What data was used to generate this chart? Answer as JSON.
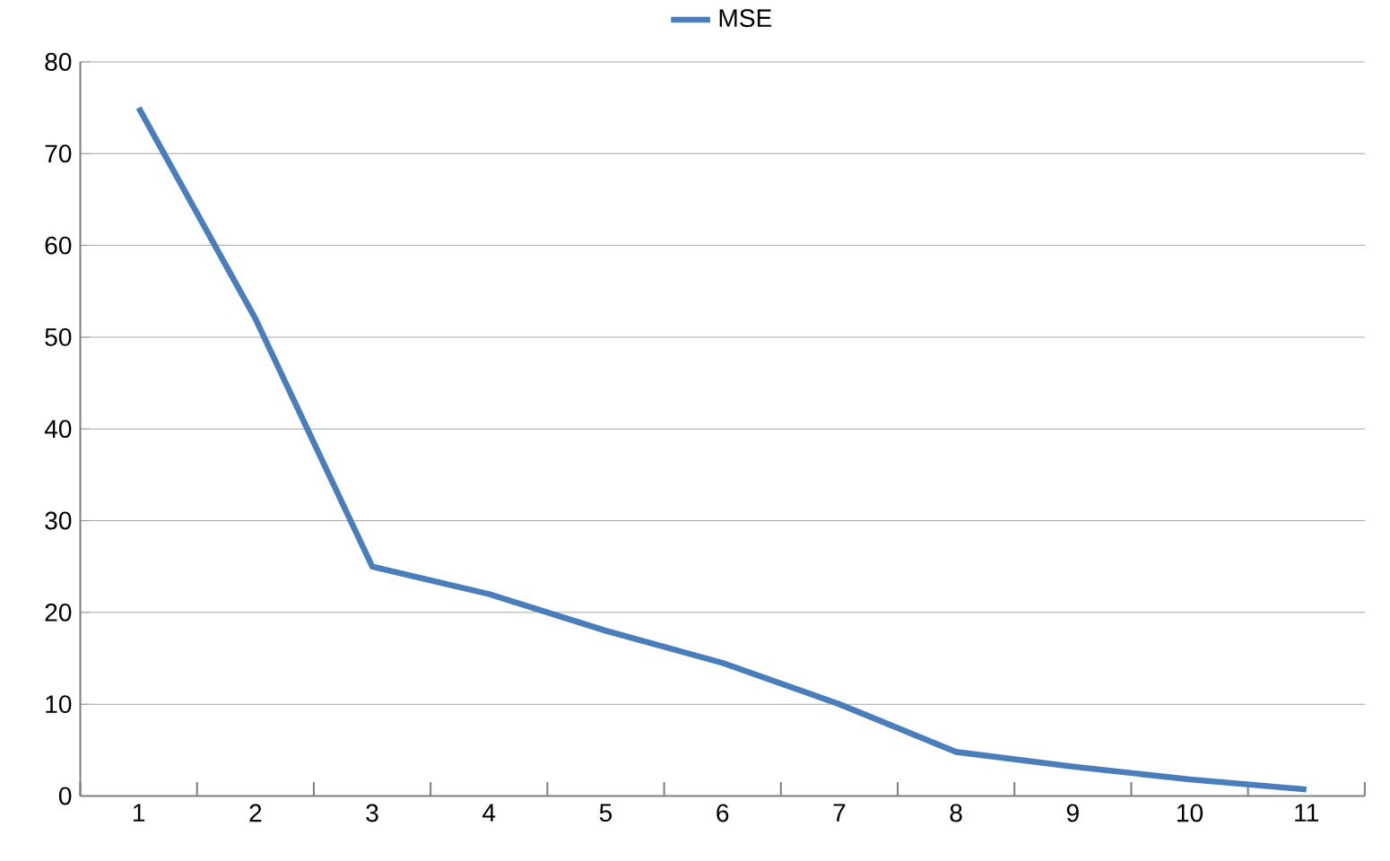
{
  "chart_data": {
    "type": "line",
    "categories": [
      "1",
      "2",
      "3",
      "4",
      "5",
      "6",
      "7",
      "8",
      "9",
      "10",
      "11"
    ],
    "series": [
      {
        "name": "MSE",
        "color": "#4a7ebb",
        "values": [
          75,
          52,
          25,
          22,
          18,
          14.5,
          10,
          4.8,
          3.2,
          1.8,
          0.7
        ]
      }
    ],
    "ylim": [
      0,
      80
    ],
    "yticks": [
      0,
      10,
      20,
      30,
      40,
      50,
      60,
      70,
      80
    ],
    "grid": "y",
    "legend": "top",
    "marker": "none",
    "line_style": "solid"
  }
}
